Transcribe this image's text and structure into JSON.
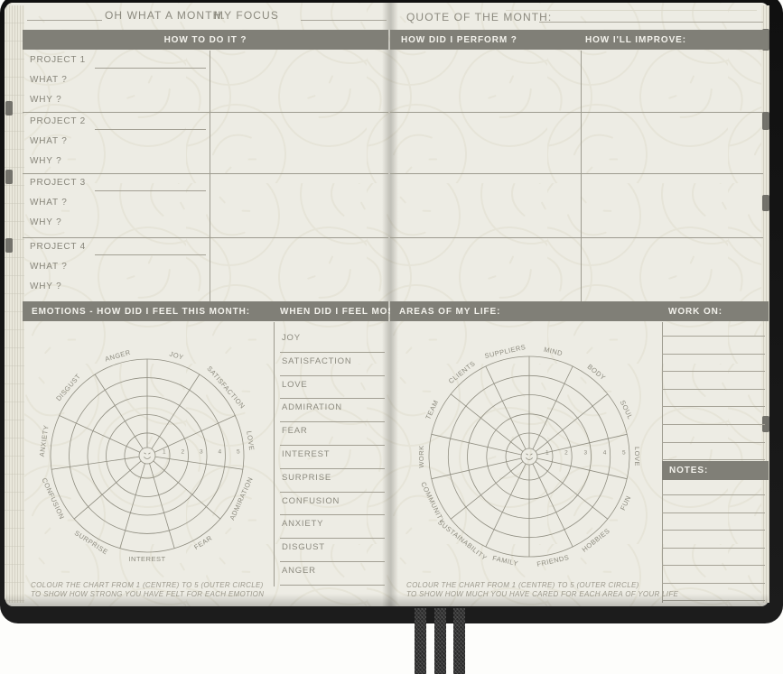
{
  "header": {
    "month_title": "OH WHAT A MONTH.",
    "focus_label": "MY FOCUS",
    "quote_label": "QUOTE OF THE MONTH:"
  },
  "section_bars": {
    "how_to_do_it": "HOW TO DO IT ?",
    "how_did_i_perform": "HOW DID I PERFORM ?",
    "how_ill_improve": "HOW I'LL IMPROVE:",
    "emotions": "EMOTIONS - HOW DID I FEEL THIS MONTH:",
    "when_did_i_feel_most": "WHEN DID I FEEL MOST:",
    "areas_of_my_life": "AREAS OF MY LIFE:",
    "work_on": "WORK ON:",
    "notes": "NOTES:"
  },
  "projects": [
    {
      "label": "PROJECT 1",
      "what": "WHAT ?",
      "why": "WHY ?"
    },
    {
      "label": "PROJECT 2",
      "what": "WHAT ?",
      "why": "WHY ?"
    },
    {
      "label": "PROJECT 3",
      "what": "WHAT ?",
      "why": "WHY ?"
    },
    {
      "label": "PROJECT 4",
      "what": "WHAT ?",
      "why": "WHY ?"
    }
  ],
  "feel_most_list": [
    "JOY",
    "SATISFACTION",
    "LOVE",
    "ADMIRATION",
    "FEAR",
    "INTEREST",
    "SURPRISE",
    "CONFUSION",
    "ANXIETY",
    "DISGUST",
    "ANGER"
  ],
  "chart_data": [
    {
      "type": "radar",
      "title": "EMOTIONS - HOW DID I FEEL THIS MONTH:",
      "categories": [
        "JOY",
        "SATISFACTION",
        "LOVE",
        "ADMIRATION",
        "FEAR",
        "INTEREST",
        "SURPRISE",
        "CONFUSION",
        "ANXIETY",
        "DISGUST",
        "ANGER"
      ],
      "scale_ticks": [
        "1",
        "2",
        "3",
        "4",
        "5"
      ],
      "values": []
    },
    {
      "type": "radar",
      "title": "AREAS OF MY LIFE:",
      "categories": [
        "MIND",
        "BODY",
        "SOUL",
        "LOVE",
        "FUN",
        "HOBBIES",
        "FRIENDS",
        "FAMILY",
        "SUSTAINABILITY",
        "COMMUNITY",
        "WORK",
        "TEAM",
        "CLIENTS",
        "SUPPLIERS"
      ],
      "scale_ticks": [
        "1",
        "2",
        "3",
        "4",
        "5"
      ],
      "values": []
    }
  ],
  "instructions": {
    "emotions_line1": "COLOUR THE CHART FROM 1 (CENTRE) TO 5 (OUTER CIRCLE)",
    "emotions_line2": "TO SHOW HOW STRONG YOU HAVE FELT FOR EACH EMOTION",
    "areas_line1": "COLOUR THE CHART FROM 1 (CENTRE) TO 5 (OUTER CIRCLE)",
    "areas_line2": "TO SHOW HOW MUCH YOU HAVE CARED FOR EACH AREA OF YOUR LIFE"
  },
  "colors": {
    "bar": "#807f77",
    "page": "#edece4",
    "cover": "#161616",
    "rule_line": "#a6a397",
    "chart_line": "#8f8d80"
  }
}
